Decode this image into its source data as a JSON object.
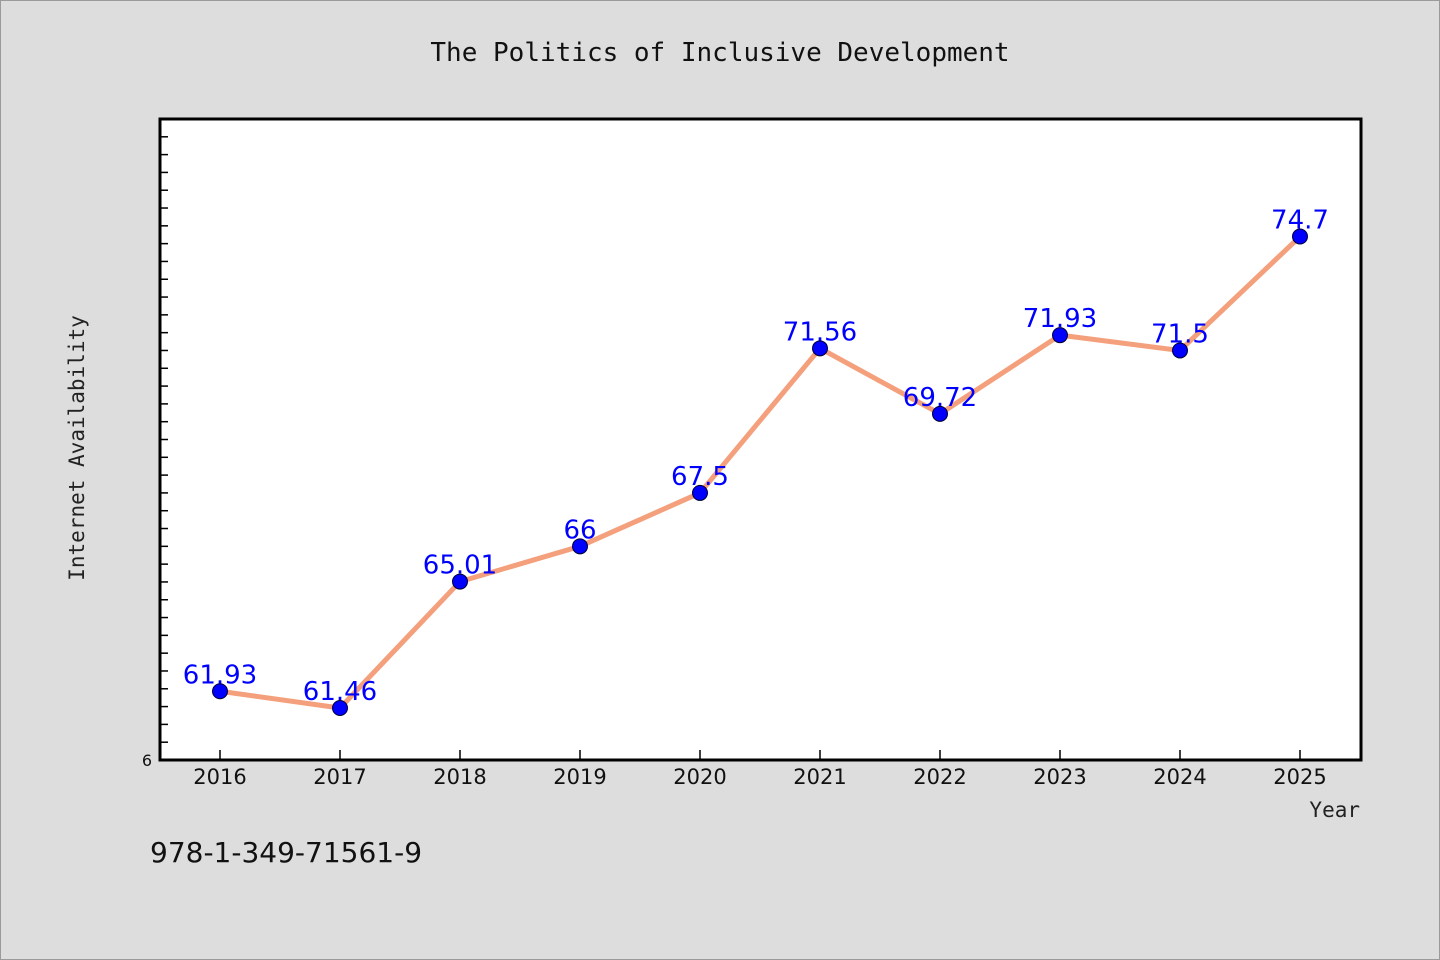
{
  "chart_data": {
    "type": "line",
    "title": "The Politics of Inclusive Development",
    "xlabel": "Year",
    "ylabel": "Internet Availability",
    "categories": [
      "2016",
      "2017",
      "2018",
      "2019",
      "2020",
      "2021",
      "2022",
      "2023",
      "2024",
      "2025"
    ],
    "series": [
      {
        "values": [
          61.93,
          61.46,
          65.01,
          66,
          67.5,
          71.56,
          69.72,
          71.93,
          71.5,
          74.7
        ],
        "data_labels": [
          "61.93",
          "61.46",
          "65.01",
          "66",
          "67.5",
          "71.56",
          "69.72",
          "71.93",
          "71.5",
          "74.7"
        ],
        "line_color": "#f4a07c",
        "marker_color": "#0000ff"
      }
    ],
    "ylim": [
      60,
      78
    ],
    "y_tick_labels": [
      "6"
    ],
    "grid": false,
    "legend": "none"
  },
  "footer": {
    "isbn": "978-1-349-71561-9"
  },
  "colors": {
    "background": "#dddddd",
    "plot_background": "#ffffff"
  }
}
